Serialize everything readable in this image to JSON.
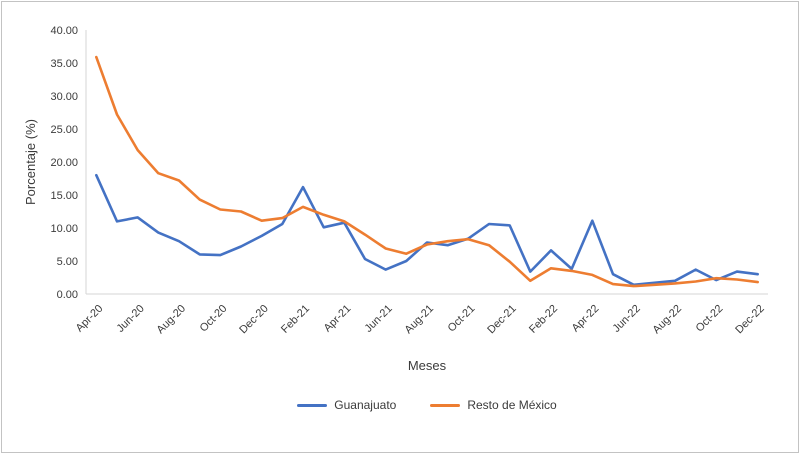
{
  "chart_data": {
    "type": "line",
    "title": "",
    "xlabel": "Meses",
    "ylabel": "Porcentaje (%)",
    "ylim": [
      0,
      40
    ],
    "yticks": [
      "0.00",
      "5.00",
      "10.00",
      "15.00",
      "20.00",
      "25.00",
      "30.00",
      "35.00",
      "40.00"
    ],
    "grid": false,
    "legend_position": "bottom",
    "xtick_every": 2,
    "categories": [
      "Apr-20",
      "May-20",
      "Jun-20",
      "Jul-20",
      "Aug-20",
      "Sep-20",
      "Oct-20",
      "Nov-20",
      "Dec-20",
      "Jan-21",
      "Feb-21",
      "Mar-21",
      "Apr-21",
      "May-21",
      "Jun-21",
      "Jul-21",
      "Aug-21",
      "Sep-21",
      "Oct-21",
      "Nov-21",
      "Dec-21",
      "Jan-22",
      "Feb-22",
      "Mar-22",
      "Apr-22",
      "May-22",
      "Jun-22",
      "Jul-22",
      "Aug-22",
      "Sep-22",
      "Oct-22",
      "Nov-22",
      "Dec-22"
    ],
    "series": [
      {
        "name": "Guanajuato",
        "color": "#4472C4",
        "values": [
          18.0,
          11.0,
          11.6,
          9.3,
          8.0,
          6.0,
          5.9,
          7.2,
          8.8,
          10.6,
          16.2,
          10.1,
          10.8,
          5.3,
          3.7,
          5.0,
          7.8,
          7.4,
          8.4,
          10.6,
          10.4,
          3.4,
          6.6,
          3.8,
          11.1,
          3.0,
          1.4,
          1.7,
          2.0,
          3.7,
          2.1,
          3.4,
          3.0
        ]
      },
      {
        "name": "Resto de México",
        "color": "#ED7D31",
        "values": [
          35.9,
          27.2,
          21.8,
          18.3,
          17.2,
          14.3,
          12.8,
          12.5,
          11.1,
          11.5,
          13.2,
          12.0,
          11.0,
          9.0,
          6.9,
          6.1,
          7.5,
          8.0,
          8.3,
          7.4,
          4.9,
          2.0,
          3.9,
          3.5,
          2.9,
          1.5,
          1.2,
          1.4,
          1.6,
          1.9,
          2.4,
          2.2,
          1.8
        ]
      }
    ]
  }
}
